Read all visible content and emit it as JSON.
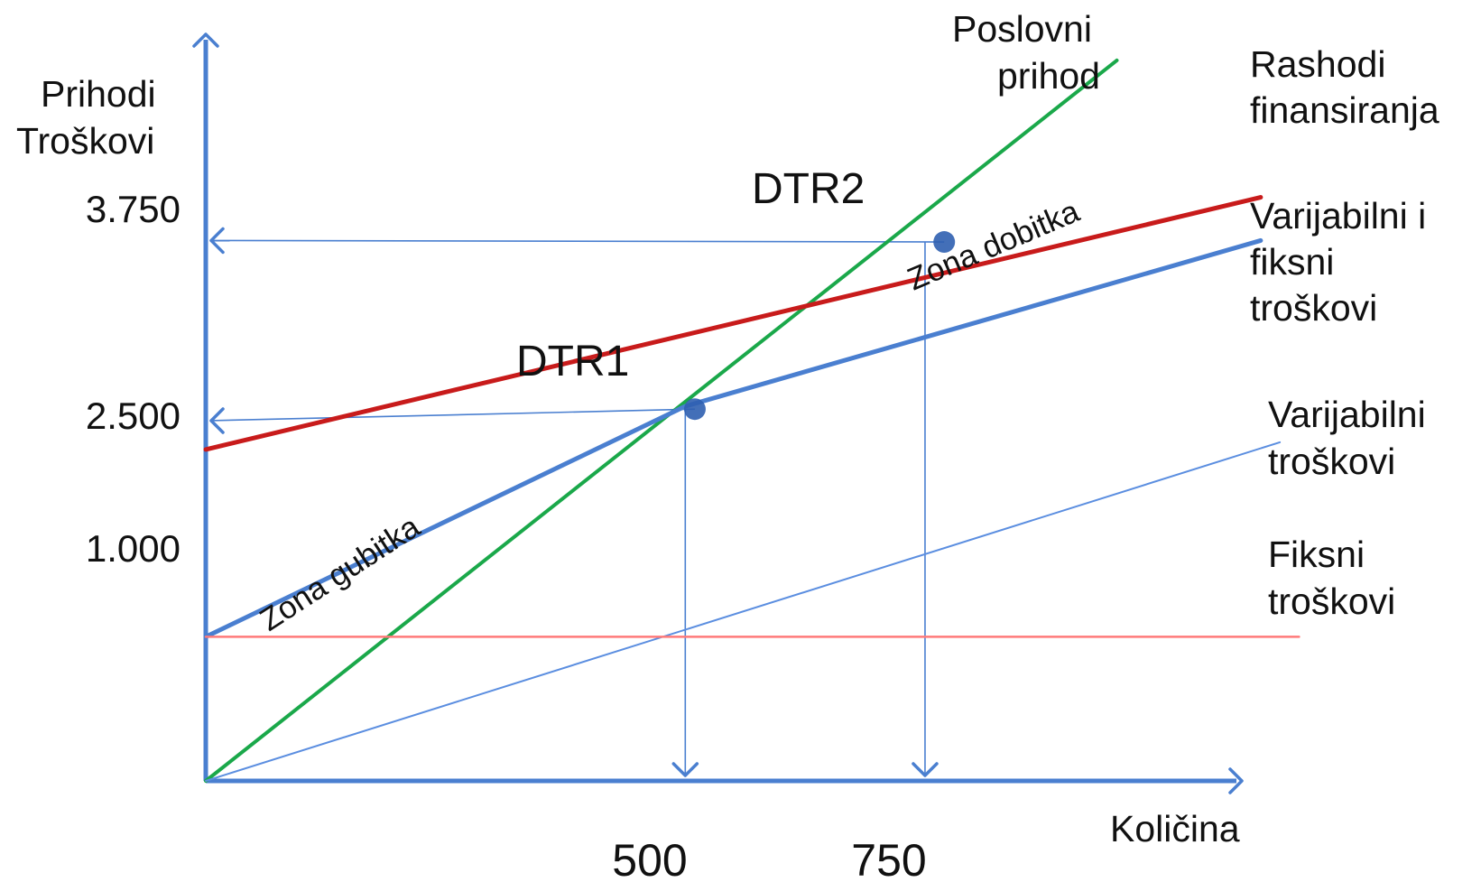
{
  "chart_data": {
    "type": "line",
    "title": "",
    "ylabel": [
      "Prihodi",
      "Troškovi"
    ],
    "xlabel": "Količina",
    "y_ticks": [
      "3.750",
      "2.500",
      "1.000"
    ],
    "y_tick_values": [
      3750,
      2500,
      1000
    ],
    "x_ticks": [
      "500",
      "750"
    ],
    "x_tick_values": [
      500,
      750
    ],
    "xlim": [
      0,
      1150
    ],
    "ylim": [
      0,
      5200
    ],
    "series": [
      {
        "name": "Poslovni prihod",
        "color": "#1aa84a",
        "x": [
          0,
          950
        ],
        "y": [
          0,
          5000
        ]
      },
      {
        "name": "Rashodi finansiranja",
        "color": "#c81b1b",
        "x": [
          0,
          1100
        ],
        "y": [
          2300,
          4050
        ]
      },
      {
        "name": "Varijabilni i fiksni troškovi",
        "color": "#4a7fd0",
        "x": [
          0,
          500,
          1100
        ],
        "y": [
          1000,
          2600,
          3750
        ]
      },
      {
        "name": "Varijabilni troškovi",
        "color": "#5b8ee0",
        "x": [
          0,
          1120
        ],
        "y": [
          0,
          2350
        ]
      },
      {
        "name": "Fiksni troškovi",
        "color": "#ff7a7a",
        "x": [
          0,
          1140
        ],
        "y": [
          1000,
          1000
        ]
      }
    ],
    "series_labels": [
      [
        "Poslovni",
        "prihod"
      ],
      [
        "Rashodi",
        "finansiranja"
      ],
      [
        "Varijabilni i",
        "fiksni",
        "troškovi"
      ],
      [
        "Varijabilni",
        "troškovi"
      ],
      [
        "Fiksni",
        "troškovi"
      ]
    ],
    "points": [
      {
        "name": "DTR1",
        "x": 510,
        "y": 2580
      },
      {
        "name": "DTR2",
        "x": 770,
        "y": 3740
      }
    ],
    "annotations": [
      "Zona gubitka",
      "Zona dobitka"
    ],
    "colors": {
      "axis": "#4a7fd0",
      "guide": "#4a7fd0",
      "point": "#2f5fb0"
    }
  }
}
